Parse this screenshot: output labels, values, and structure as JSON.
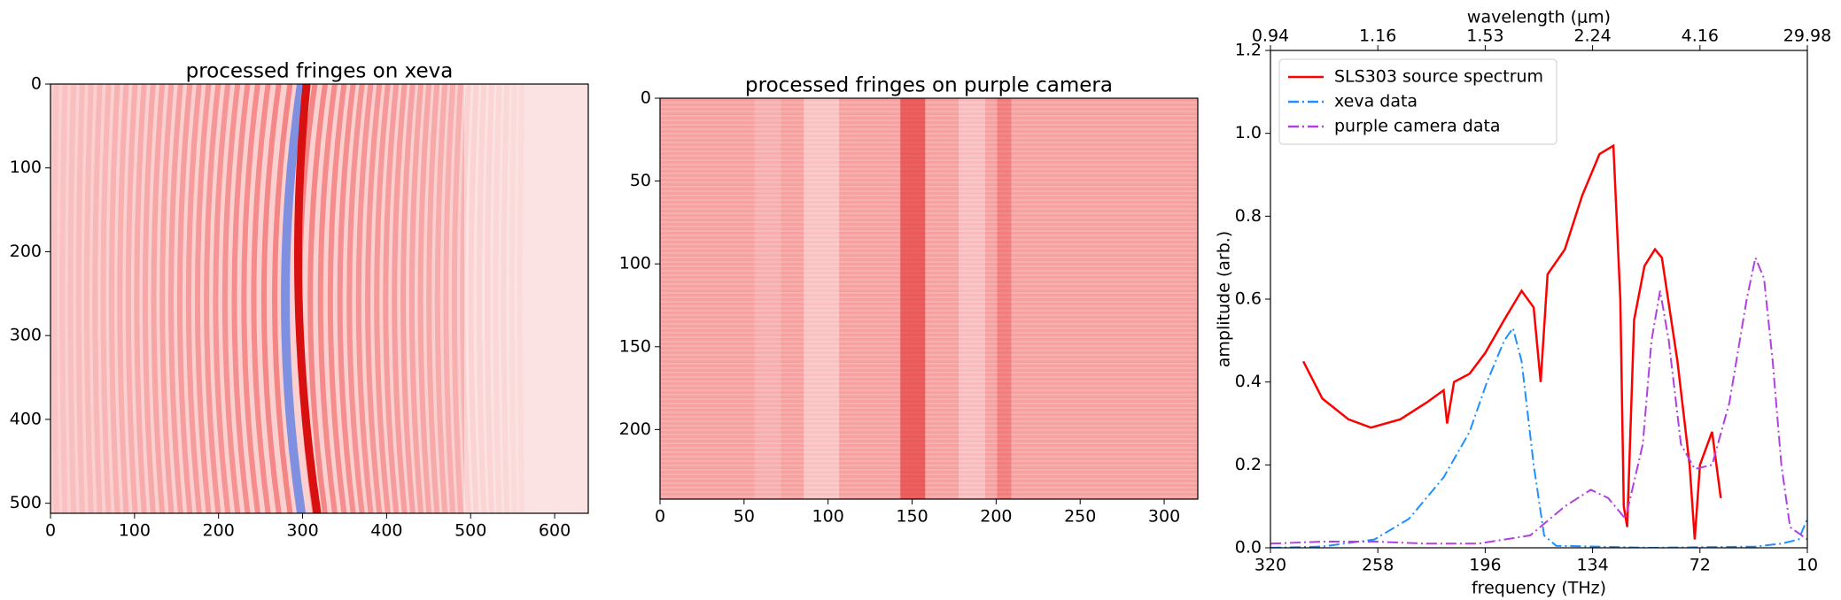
{
  "chart_data": [
    {
      "type": "image",
      "title": "processed fringes on xeva",
      "xlim": [
        0,
        640
      ],
      "ylim": [
        512,
        0
      ],
      "xticks": [
        0,
        100,
        200,
        300,
        400,
        500,
        600
      ],
      "yticks": [
        0,
        100,
        200,
        300,
        400,
        500
      ]
    },
    {
      "type": "image",
      "title": "processed fringes on purple camera",
      "xlim": [
        0,
        320
      ],
      "ylim": [
        242,
        0
      ],
      "xticks": [
        0,
        50,
        100,
        150,
        200,
        250,
        300
      ],
      "yticks": [
        0,
        50,
        100,
        150,
        200
      ]
    },
    {
      "type": "line",
      "xlabel": "frequency (THz)",
      "ylabel": "amplitude (arb.)",
      "x2label": "wavelength (μm)",
      "xlim": [
        320,
        10
      ],
      "ylim": [
        0,
        1.2
      ],
      "xticks": [
        320,
        258,
        196,
        134,
        72,
        10
      ],
      "yticks": [
        {
          "value": 0,
          "label": "0.0"
        },
        {
          "value": 0.2,
          "label": "0.2"
        },
        {
          "value": 0.4,
          "label": "0.4"
        },
        {
          "value": 0.6,
          "label": "0.6"
        },
        {
          "value": 0.8,
          "label": "0.8"
        },
        {
          "value": 1,
          "label": "1.0"
        },
        {
          "value": 1.2,
          "label": "1.2"
        }
      ],
      "x2ticks": [
        {
          "value": 320,
          "label": "0.94"
        },
        {
          "value": 258,
          "label": "1.16"
        },
        {
          "value": 196,
          "label": "1.53"
        },
        {
          "value": 134,
          "label": "2.24"
        },
        {
          "value": 72,
          "label": "4.16"
        },
        {
          "value": 10,
          "label": "29.98"
        }
      ],
      "legend": "upper left",
      "series": [
        {
          "name": "SLS303 source spectrum",
          "color": "#ff0000",
          "dash": "solid",
          "x": [
            301,
            290,
            275,
            262,
            245,
            230,
            220,
            218,
            214,
            205,
            196,
            185,
            175,
            168,
            164,
            160,
            150,
            140,
            130,
            122,
            118,
            116,
            114,
            110,
            104,
            98,
            94,
            85,
            78,
            75,
            72,
            65,
            60
          ],
          "values": [
            0.45,
            0.36,
            0.31,
            0.29,
            0.31,
            0.35,
            0.38,
            0.3,
            0.4,
            0.42,
            0.47,
            0.55,
            0.62,
            0.58,
            0.4,
            0.66,
            0.72,
            0.85,
            0.95,
            0.97,
            0.6,
            0.1,
            0.05,
            0.55,
            0.68,
            0.72,
            0.7,
            0.45,
            0.2,
            0.02,
            0.2,
            0.28,
            0.12
          ]
        },
        {
          "name": "xeva data",
          "color": "#1e90ff",
          "dash": "dashdot",
          "x": [
            320,
            290,
            260,
            240,
            220,
            205,
            195,
            185,
            180,
            175,
            168,
            162,
            155,
            100,
            40,
            25,
            15,
            10
          ],
          "values": [
            0,
            0.003,
            0.02,
            0.07,
            0.17,
            0.28,
            0.4,
            0.5,
            0.53,
            0.45,
            0.2,
            0.03,
            0.005,
            0,
            0.003,
            0.01,
            0.02,
            0.07
          ]
        },
        {
          "name": "purple camera data",
          "color": "#b040e0",
          "dash": "dashdot",
          "x": [
            320,
            290,
            260,
            230,
            200,
            170,
            150,
            135,
            125,
            115,
            105,
            100,
            95,
            90,
            83,
            75,
            65,
            55,
            45,
            40,
            35,
            30,
            25,
            20,
            10
          ],
          "values": [
            0.01,
            0.015,
            0.015,
            0.01,
            0.01,
            0.03,
            0.1,
            0.14,
            0.12,
            0.07,
            0.25,
            0.5,
            0.62,
            0.5,
            0.25,
            0.19,
            0.2,
            0.35,
            0.6,
            0.7,
            0.65,
            0.45,
            0.2,
            0.05,
            0.02
          ]
        }
      ]
    }
  ]
}
